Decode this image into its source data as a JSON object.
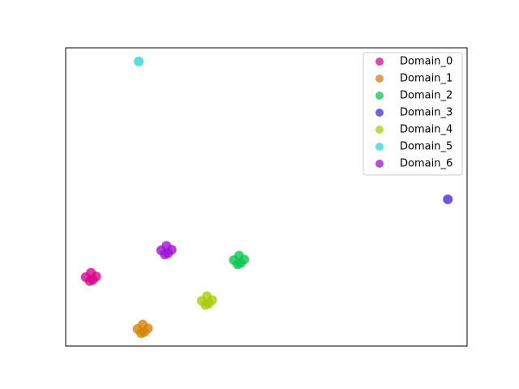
{
  "chart_data": {
    "type": "scatter",
    "xlim": [
      0,
      100
    ],
    "ylim": [
      0,
      100
    ],
    "legend": "upper right",
    "series": [
      {
        "name": "Domain_0",
        "color": "#d6088f",
        "x": [
          5.0,
          6.3,
          7.6,
          6.0,
          6.8
        ],
        "values": [
          23.1,
          24.6,
          23.3,
          21.8,
          22.2
        ]
      },
      {
        "name": "Domain_1",
        "color": "#d4820a",
        "x": [
          17.9,
          19.2,
          20.5,
          18.8,
          19.6
        ],
        "values": [
          5.7,
          7.2,
          5.9,
          4.3,
          4.7
        ]
      },
      {
        "name": "Domain_2",
        "color": "#0cc654",
        "x": [
          41.9,
          43.2,
          44.5,
          42.8,
          43.6
        ],
        "values": [
          28.8,
          30.3,
          29.0,
          27.4,
          27.8
        ]
      },
      {
        "name": "Domain_3",
        "color": "#4a2bd6",
        "x": [
          95.2
        ],
        "values": [
          49.2
        ]
      },
      {
        "name": "Domain_4",
        "color": "#a8cc0a",
        "x": [
          33.9,
          35.2,
          36.5,
          34.8,
          35.6
        ],
        "values": [
          15.2,
          16.7,
          15.4,
          13.8,
          14.2
        ]
      },
      {
        "name": "Domain_5",
        "color": "#2fd6d6",
        "x": [
          18.2
        ],
        "values": [
          95.4
        ]
      },
      {
        "name": "Domain_6",
        "color": "#a010d6",
        "x": [
          23.8,
          25.1,
          26.4,
          24.7,
          25.5
        ],
        "values": [
          32.1,
          33.6,
          32.3,
          30.7,
          31.1
        ]
      }
    ]
  }
}
